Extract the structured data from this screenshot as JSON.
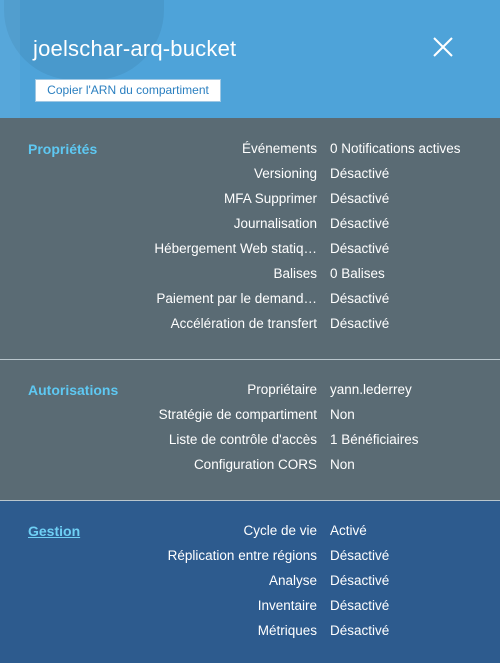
{
  "header": {
    "title": "joelschar-arq-bucket",
    "copy_arn_label": "Copier l'ARN du compartiment",
    "close_icon": "close-icon"
  },
  "sections": [
    {
      "title": "Propriétés",
      "rows": [
        {
          "label": "Événements",
          "value": "0 Notifications actives"
        },
        {
          "label": "Versioning",
          "value": "Désactivé"
        },
        {
          "label": "MFA Supprimer",
          "value": "Désactivé"
        },
        {
          "label": "Journalisation",
          "value": "Désactivé"
        },
        {
          "label": "Hébergement Web statiq…",
          "value": "Désactivé"
        },
        {
          "label": "Balises",
          "value": "0 Balises"
        },
        {
          "label": "Paiement par le demand…",
          "value": "Désactivé"
        },
        {
          "label": "Accélération de transfert",
          "value": "Désactivé"
        }
      ]
    },
    {
      "title": "Autorisations",
      "rows": [
        {
          "label": "Propriétaire",
          "value": "yann.lederrey"
        },
        {
          "label": "Stratégie de compartiment",
          "value": "Non"
        },
        {
          "label": "Liste de contrôle d'accès",
          "value": "1 Bénéficiaires"
        },
        {
          "label": "Configuration CORS",
          "value": "Non"
        }
      ]
    },
    {
      "title": "Gestion",
      "rows": [
        {
          "label": "Cycle de vie",
          "value": "Activé"
        },
        {
          "label": "Réplication entre régions",
          "value": "Désactivé"
        },
        {
          "label": "Analyse",
          "value": "Désactivé"
        },
        {
          "label": "Inventaire",
          "value": "Désactivé"
        },
        {
          "label": "Métriques",
          "value": "Désactivé"
        }
      ]
    }
  ],
  "colors": {
    "header_bg": "#4ea3d9",
    "panel_bg": "#5a6b74",
    "management_bg": "#2d5b8e",
    "section_title": "#5ec8f2"
  }
}
